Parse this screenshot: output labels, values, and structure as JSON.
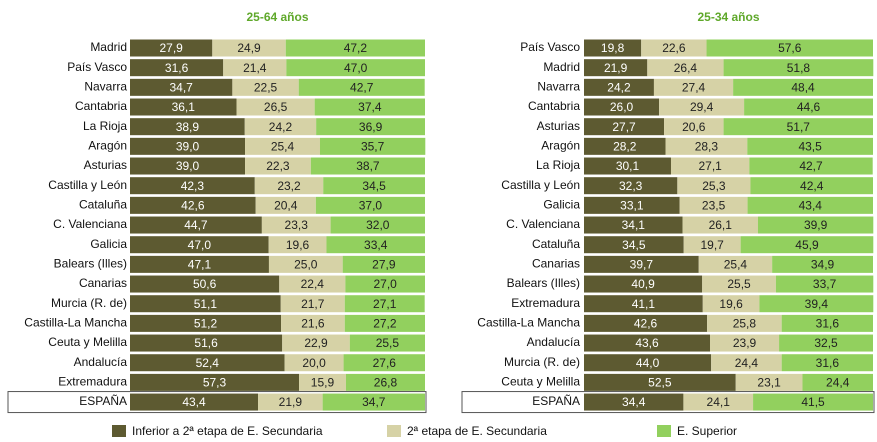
{
  "legend": [
    {
      "name": "Inferior a 2ª etapa de E. Secundaria",
      "color": "#5d5a31"
    },
    {
      "name": "2ª etapa de E. Secundaria",
      "color": "#d6d2a6"
    },
    {
      "name": "E. Superior",
      "color": "#92d05e"
    }
  ],
  "chart_data": [
    {
      "type": "bar",
      "orientation": "horizontal",
      "stacked": true,
      "title": "25-64 años",
      "xlim": [
        0,
        100
      ],
      "highlight_last": true,
      "categories": [
        "Madrid",
        "País Vasco",
        "Navarra",
        "Cantabria",
        "La Rioja",
        "Aragón",
        "Asturias",
        "Castilla y León",
        "Cataluña",
        "C. Valenciana",
        "Galicia",
        "Balears (Illes)",
        "Canarias",
        "Murcia (R. de)",
        "Castilla-La Mancha",
        "Ceuta y Melilla",
        "Andalucía",
        "Extremadura",
        "ESPAÑA"
      ],
      "series": [
        {
          "values": [
            27.9,
            31.6,
            34.7,
            36.1,
            38.9,
            39.0,
            39.0,
            42.3,
            42.6,
            44.7,
            47.0,
            47.1,
            50.6,
            51.1,
            51.2,
            51.6,
            52.4,
            57.3,
            43.4
          ],
          "value_labels": [
            "27,9",
            "31,6",
            "34,7",
            "36,1",
            "38,9",
            "39,0",
            "39,0",
            "42,3",
            "42,6",
            "44,7",
            "47,0",
            "47,1",
            "50,6",
            "51,1",
            "51,2",
            "51,6",
            "52,4",
            "57,3",
            "43,4"
          ]
        },
        {
          "values": [
            24.9,
            21.4,
            22.5,
            26.5,
            24.2,
            25.4,
            22.3,
            23.2,
            20.4,
            23.3,
            19.6,
            25.0,
            22.4,
            21.7,
            21.6,
            22.9,
            20.0,
            15.9,
            21.9
          ],
          "value_labels": [
            "24,9",
            "21,4",
            "22,5",
            "26,5",
            "24,2",
            "25,4",
            "22,3",
            "23,2",
            "20,4",
            "23,3",
            "19,6",
            "25,0",
            "22,4",
            "21,7",
            "21,6",
            "22,9",
            "20,0",
            "15,9",
            "21,9"
          ]
        },
        {
          "values": [
            47.2,
            47.0,
            42.7,
            37.4,
            36.9,
            35.7,
            38.7,
            34.5,
            37.0,
            32.0,
            33.4,
            27.9,
            27.0,
            27.1,
            27.2,
            25.5,
            27.6,
            26.8,
            34.7
          ],
          "value_labels": [
            "47,2",
            "47,0",
            "42,7",
            "37,4",
            "36,9",
            "35,7",
            "38,7",
            "34,5",
            "37,0",
            "32,0",
            "33,4",
            "27,9",
            "27,0",
            "27,1",
            "27,2",
            "25,5",
            "27,6",
            "26,8",
            "34,7"
          ]
        }
      ]
    },
    {
      "type": "bar",
      "orientation": "horizontal",
      "stacked": true,
      "title": "25-34 años",
      "xlim": [
        0,
        100
      ],
      "highlight_last": true,
      "categories": [
        "País Vasco",
        "Madrid",
        "Navarra",
        "Cantabria",
        "Asturias",
        "Aragón",
        "La Rioja",
        "Castilla y León",
        "Galicia",
        "C. Valenciana",
        "Cataluña",
        "Canarias",
        "Balears (Illes)",
        "Extremadura",
        "Castilla-La Mancha",
        "Andalucía",
        "Murcia (R. de)",
        "Ceuta y Melilla",
        "ESPAÑA"
      ],
      "series": [
        {
          "values": [
            19.8,
            21.9,
            24.2,
            26.0,
            27.7,
            28.2,
            30.1,
            32.3,
            33.1,
            34.1,
            34.5,
            39.7,
            40.9,
            41.1,
            42.6,
            43.6,
            44.0,
            52.5,
            34.4
          ],
          "value_labels": [
            "19,8",
            "21,9",
            "24,2",
            "26,0",
            "27,7",
            "28,2",
            "30,1",
            "32,3",
            "33,1",
            "34,1",
            "34,5",
            "39,7",
            "40,9",
            "41,1",
            "42,6",
            "43,6",
            "44,0",
            "52,5",
            "34,4"
          ]
        },
        {
          "values": [
            22.6,
            26.4,
            27.4,
            29.4,
            20.6,
            28.3,
            27.1,
            25.3,
            23.5,
            26.1,
            19.7,
            25.4,
            25.5,
            19.6,
            25.8,
            23.9,
            24.4,
            23.1,
            24.1
          ],
          "value_labels": [
            "22,6",
            "26,4",
            "27,4",
            "29,4",
            "20,6",
            "28,3",
            "27,1",
            "25,3",
            "23,5",
            "26,1",
            "19,7",
            "25,4",
            "25,5",
            "19,6",
            "25,8",
            "23,9",
            "24,4",
            "23,1",
            "24,1"
          ]
        },
        {
          "values": [
            57.6,
            51.8,
            48.4,
            44.6,
            51.7,
            43.5,
            42.7,
            42.4,
            43.4,
            39.9,
            45.9,
            34.9,
            33.7,
            39.4,
            31.6,
            32.5,
            31.6,
            24.4,
            41.5
          ],
          "value_labels": [
            "57,6",
            "51,8",
            "48,4",
            "44,6",
            "51,7",
            "43,5",
            "42,7",
            "42,4",
            "43,4",
            "39,9",
            "45,9",
            "34,9",
            "33,7",
            "39,4",
            "31,6",
            "32,5",
            "31,6",
            "24,4",
            "41,5"
          ]
        }
      ]
    }
  ]
}
